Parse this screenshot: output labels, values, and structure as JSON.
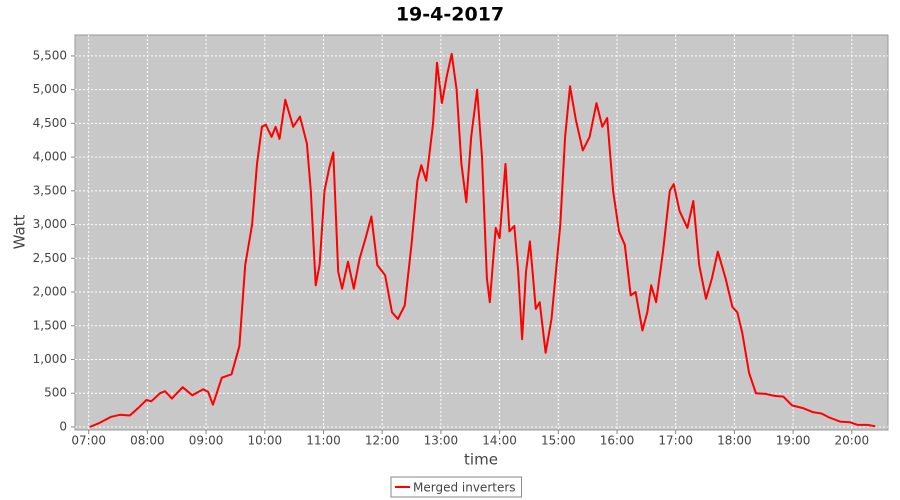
{
  "chart_data": {
    "type": "line",
    "title": "19-4-2017",
    "xlabel": "time",
    "ylabel": "Watt",
    "x": [
      "07:01",
      "07:11",
      "07:23",
      "07:32",
      "07:42",
      "07:52",
      "07:59",
      "08:04",
      "08:13",
      "08:18",
      "08:25",
      "08:36",
      "08:46",
      "08:57",
      "09:02",
      "09:07",
      "09:16",
      "09:26",
      "09:34",
      "09:40",
      "09:47",
      "09:52",
      "09:57",
      "10:01",
      "10:07",
      "10:11",
      "10:15",
      "10:21",
      "10:29",
      "10:36",
      "10:43",
      "10:47",
      "10:52",
      "10:56",
      "11:01",
      "11:06",
      "11:10",
      "11:15",
      "11:19",
      "11:25",
      "11:31",
      "11:37",
      "11:43",
      "11:49",
      "11:55",
      "12:03",
      "12:10",
      "12:16",
      "12:23",
      "12:30",
      "12:36",
      "12:40",
      "12:45",
      "12:52",
      "12:56",
      "13:01",
      "13:06",
      "13:11",
      "13:16",
      "13:21",
      "13:26",
      "13:31",
      "13:37",
      "13:42",
      "13:47",
      "13:50",
      "13:56",
      "14:00",
      "14:06",
      "14:10",
      "14:15",
      "14:19",
      "14:23",
      "14:27",
      "14:31",
      "14:37",
      "14:41",
      "14:47",
      "14:53",
      "15:02",
      "15:07",
      "15:12",
      "15:18",
      "15:25",
      "15:32",
      "15:39",
      "15:45",
      "15:50",
      "15:56",
      "16:02",
      "16:08",
      "16:14",
      "16:19",
      "16:26",
      "16:31",
      "16:35",
      "16:40",
      "16:47",
      "16:54",
      "16:58",
      "17:04",
      "17:12",
      "17:18",
      "17:24",
      "17:31",
      "17:37",
      "17:43",
      "17:51",
      "17:58",
      "18:03",
      "18:08",
      "18:15",
      "18:22",
      "18:32",
      "18:41",
      "18:50",
      "18:59",
      "19:10",
      "19:20",
      "19:29",
      "19:37",
      "19:48",
      "19:58",
      "20:06",
      "20:16",
      "20:24"
    ],
    "series": [
      {
        "name": "Merged inverters",
        "color": "#ff0000",
        "values": [
          0,
          60,
          150,
          180,
          170,
          300,
          400,
          380,
          500,
          530,
          420,
          590,
          470,
          560,
          520,
          330,
          730,
          780,
          1200,
          2400,
          3000,
          3900,
          4450,
          4480,
          4300,
          4450,
          4270,
          4850,
          4450,
          4600,
          4200,
          3500,
          2100,
          2400,
          3500,
          3850,
          4070,
          2300,
          2050,
          2450,
          2050,
          2500,
          2800,
          3120,
          2400,
          2250,
          1700,
          1600,
          1800,
          2700,
          3650,
          3880,
          3650,
          4500,
          5400,
          4800,
          5200,
          5530,
          5000,
          3900,
          3330,
          4300,
          5000,
          4000,
          2200,
          1850,
          2950,
          2800,
          3900,
          2900,
          2980,
          2300,
          1300,
          2300,
          2750,
          1750,
          1850,
          1100,
          1600,
          3000,
          4300,
          5050,
          4550,
          4100,
          4300,
          4800,
          4450,
          4580,
          3500,
          2900,
          2700,
          1950,
          2000,
          1430,
          1700,
          2100,
          1850,
          2600,
          3500,
          3600,
          3200,
          2950,
          3350,
          2400,
          1900,
          2200,
          2600,
          2200,
          1780,
          1700,
          1400,
          800,
          500,
          490,
          460,
          450,
          320,
          280,
          220,
          200,
          140,
          80,
          70,
          30,
          30,
          10
        ]
      }
    ],
    "xlim": [
      "06:46",
      "20:37"
    ],
    "xticks": [
      "07:00",
      "08:00",
      "09:00",
      "10:00",
      "11:00",
      "12:00",
      "13:00",
      "14:00",
      "15:00",
      "16:00",
      "17:00",
      "18:00",
      "19:00",
      "20:00"
    ],
    "ylim": [
      -45,
      5810
    ],
    "yticks": [
      0,
      500,
      {
        "value": 1000,
        "label": "1,000"
      },
      {
        "value": 1500,
        "label": "1,500"
      },
      {
        "value": 2000,
        "label": "2,000"
      },
      {
        "value": 2500,
        "label": "2,500"
      },
      {
        "value": 3000,
        "label": "3,000"
      },
      {
        "value": 3500,
        "label": "3,500"
      },
      {
        "value": 4000,
        "label": "4,000"
      },
      {
        "value": 4500,
        "label": "4,500"
      },
      {
        "value": 5000,
        "label": "5,000"
      },
      {
        "value": 5500,
        "label": "5,500"
      }
    ],
    "grid": true,
    "legend": "bottom"
  }
}
